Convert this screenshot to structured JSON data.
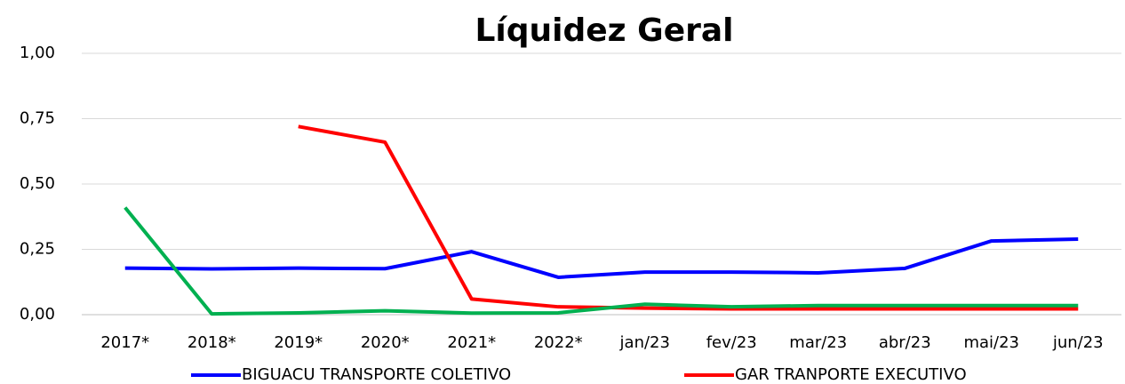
{
  "chart_data": {
    "type": "line",
    "title": "Líquidez Geral",
    "categories": [
      "2017*",
      "2018*",
      "2019*",
      "2020*",
      "2021*",
      "2022*",
      "jan/23",
      "fev/23",
      "mar/23",
      "abr/23",
      "mai/23",
      "jun/23"
    ],
    "series": [
      {
        "name": "BIGUACU TRANSPORTE COLETIVO",
        "color": "#0000ff",
        "values": [
          0.178,
          0.175,
          0.178,
          0.176,
          0.241,
          0.143,
          0.163,
          0.163,
          0.16,
          0.177,
          0.282,
          0.289
        ]
      },
      {
        "name": "GAR TRANPORTE EXECUTIVO",
        "color": "#ff0000",
        "values": [
          null,
          null,
          0.72,
          0.66,
          0.06,
          0.03,
          0.025,
          0.022,
          0.022,
          0.022,
          0.022,
          0.022
        ]
      },
      {
        "color": "#00b050",
        "values": [
          0.41,
          0.003,
          0.007,
          0.015,
          0.006,
          0.007,
          0.04,
          0.03,
          0.035,
          0.035,
          0.035,
          0.035
        ]
      }
    ],
    "ylim": [
      0,
      1
    ],
    "yticks": [
      {
        "value": 0,
        "label": "0,00"
      },
      {
        "value": 0.25,
        "label": "0,25"
      },
      {
        "value": 0.5,
        "label": "0,50"
      },
      {
        "value": 0.75,
        "label": "0,75"
      },
      {
        "value": 1,
        "label": "1,00"
      }
    ],
    "grid": true,
    "legend": "bottom"
  }
}
